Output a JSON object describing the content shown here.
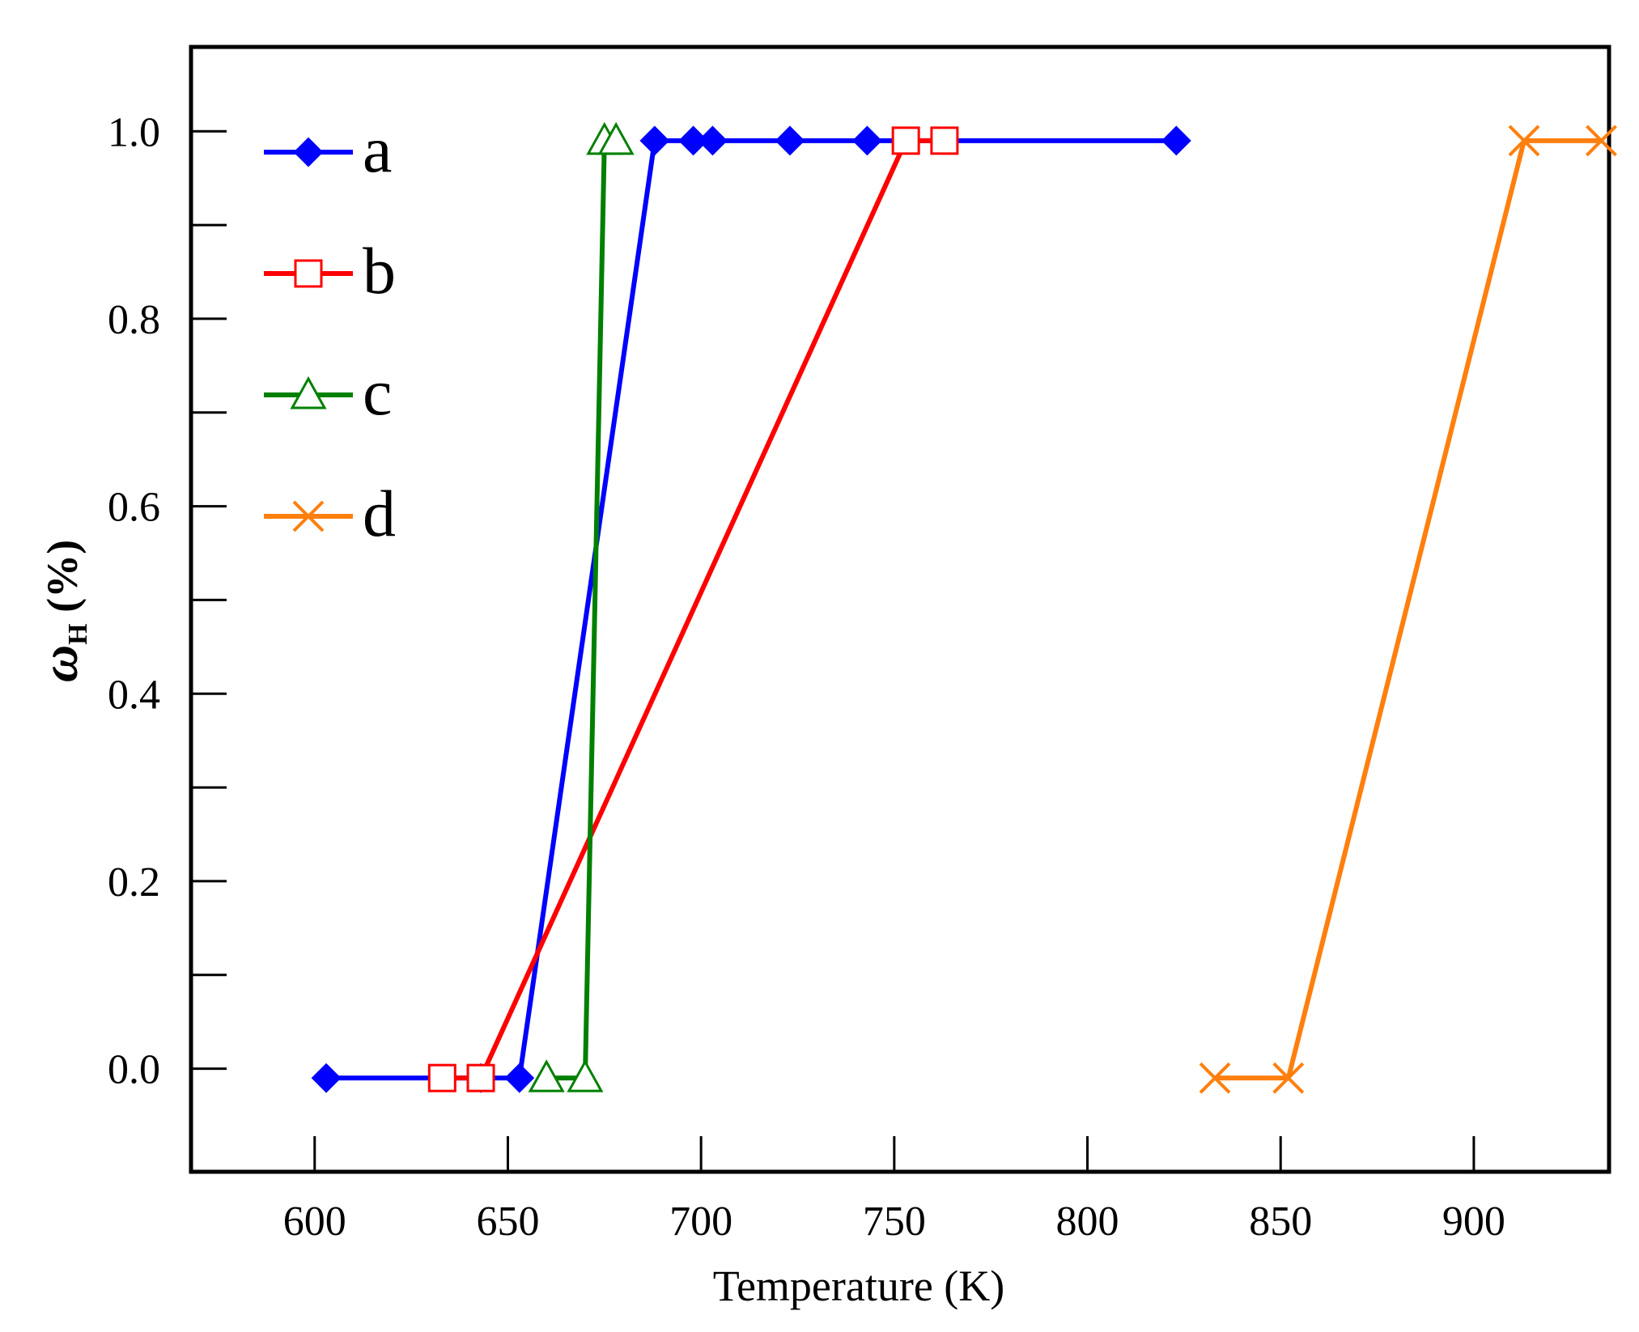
{
  "chart_data": {
    "type": "line",
    "title": "",
    "xlabel": "Temperature (K)",
    "ylabel": {
      "symbol": "ω",
      "subscript": "H",
      "unit": " (%)"
    },
    "xlim": [
      568,
      935
    ],
    "ylim": [
      -0.11,
      1.09
    ],
    "xticks": [
      600,
      650,
      700,
      750,
      800,
      850,
      900
    ],
    "xtick_labels": [
      "600",
      "650",
      "700",
      "750",
      "800",
      "850",
      "900"
    ],
    "yticks": [
      0.0,
      0.2,
      0.4,
      0.6,
      0.8,
      1.0
    ],
    "ytick_labels": [
      "0.0",
      "0.2",
      "0.4",
      "0.6",
      "0.8",
      "1.0"
    ],
    "yminor_ticks": [
      0.1,
      0.3,
      0.5,
      0.7,
      0.9
    ],
    "legend_position": "top-left",
    "series": [
      {
        "name": "a",
        "color": "#0000ff",
        "marker": "diamond-filled",
        "x": [
          603,
          643,
          653,
          688,
          698,
          703,
          723,
          743,
          823
        ],
        "y": [
          -0.01,
          -0.01,
          -0.01,
          0.99,
          0.99,
          0.99,
          0.99,
          0.99,
          0.99
        ]
      },
      {
        "name": "b",
        "color": "#ff0000",
        "marker": "square-open",
        "x": [
          633,
          643,
          753,
          763
        ],
        "y": [
          -0.01,
          -0.01,
          0.99,
          0.99
        ]
      },
      {
        "name": "c",
        "color": "#008000",
        "marker": "triangle-open",
        "x": [
          660,
          670,
          675,
          678
        ],
        "y": [
          -0.01,
          -0.01,
          0.99,
          0.99
        ]
      },
      {
        "name": "d",
        "color": "#ff7f0e",
        "marker": "x",
        "x": [
          833,
          852,
          913,
          933
        ],
        "y": [
          -0.01,
          -0.01,
          0.99,
          0.99
        ]
      }
    ]
  }
}
